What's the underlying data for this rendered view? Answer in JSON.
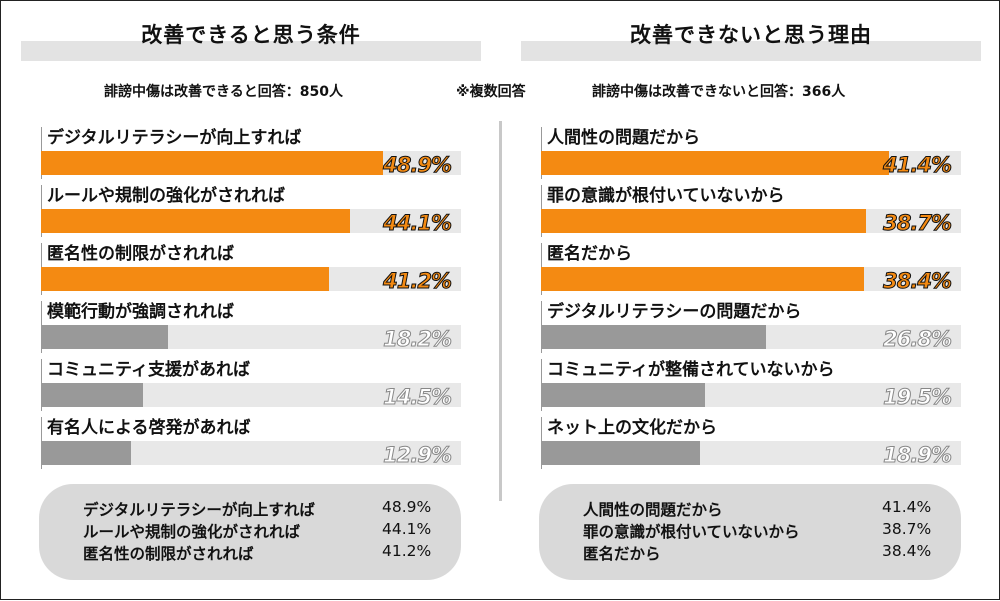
{
  "note": "※複数回答",
  "chart_data": [
    {
      "type": "bar",
      "title": "改善できると思う条件",
      "subtitle": "誹謗中傷は改善できると回答：850人",
      "categories": [
        "デジタルリテラシーが向上すれば",
        "ルールや規制の強化がされれば",
        "匿名性の制限がされれば",
        "模範行動が強調されれば",
        "コミュニティ支援があれば",
        "有名人による啓発があれば"
      ],
      "values": [
        48.9,
        44.1,
        41.2,
        18.2,
        14.5,
        12.9
      ],
      "labels": [
        "48.9%",
        "44.1%",
        "41.2%",
        "18.2%",
        "14.5%",
        "12.9%"
      ],
      "xlim": [
        0,
        60
      ],
      "colors": {
        "highlight": "#f48a12",
        "other": "#999999",
        "track": "#e8e8e8"
      },
      "highlight_count": 3,
      "summary": [
        {
          "label": "デジタルリテラシーが向上すれば",
          "value": "48.9%"
        },
        {
          "label": "ルールや規制の強化がされれば",
          "value": "44.1%"
        },
        {
          "label": "匿名性の制限がされれば",
          "value": "41.2%"
        }
      ]
    },
    {
      "type": "bar",
      "title": "改善できないと思う理由",
      "subtitle": "誹謗中傷は改善できないと回答：366人",
      "categories": [
        "人間性の問題だから",
        "罪の意識が根付いていないから",
        "匿名だから",
        "デジタルリテラシーの問題だから",
        "コミュニティが整備されていないから",
        "ネット上の文化だから"
      ],
      "values": [
        41.4,
        38.7,
        38.4,
        26.8,
        19.5,
        18.9
      ],
      "labels": [
        "41.4%",
        "38.7%",
        "38.4%",
        "26.8%",
        "19.5%",
        "18.9%"
      ],
      "xlim": [
        0,
        50
      ],
      "colors": {
        "highlight": "#f48a12",
        "other": "#999999",
        "track": "#e8e8e8"
      },
      "highlight_count": 3,
      "summary": [
        {
          "label": "人間性の問題だから",
          "value": "41.4%"
        },
        {
          "label": "罪の意識が根付いていないから",
          "value": "38.7%"
        },
        {
          "label": "匿名だから",
          "value": "38.4%"
        }
      ]
    }
  ]
}
